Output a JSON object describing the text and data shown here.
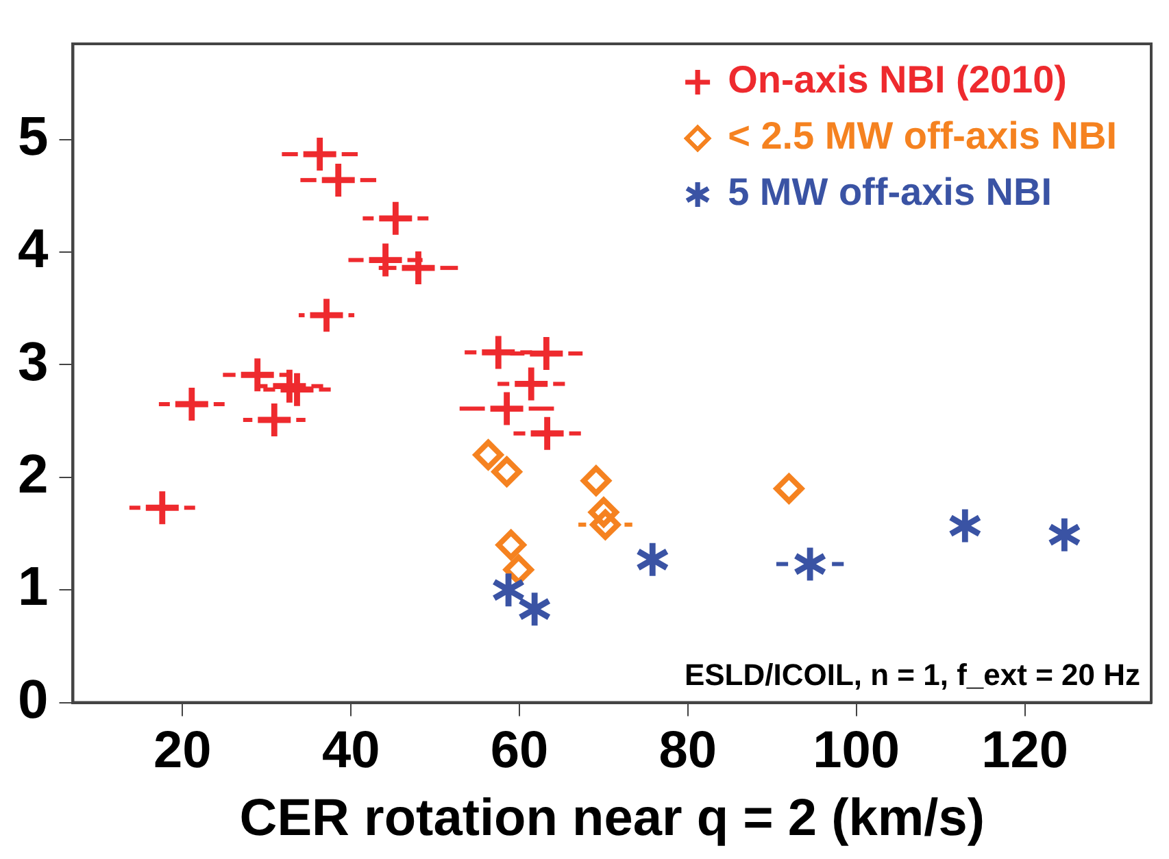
{
  "chart_data": {
    "type": "scatter",
    "xlabel": "CER rotation near q = 2 (km/s)",
    "xlim": [
      7,
      135
    ],
    "xticks": [
      20,
      40,
      60,
      80,
      100,
      120
    ],
    "ylim": [
      0,
      5.85
    ],
    "yticks": [
      0,
      1,
      2,
      3,
      4,
      5
    ],
    "grid": false,
    "legend": "top right",
    "annotations": [
      "ESLD/ICOIL, n = 1, f_ext = 20 Hz"
    ],
    "series": [
      {
        "name": "On-axis NBI (2010)",
        "color": "#ee2a2e",
        "marker": "cross",
        "x": [
          36.3,
          38.5,
          45.3,
          44.1,
          48.0,
          37.1,
          28.9,
          32.7,
          33.6,
          21.1,
          30.9,
          57.5,
          63.2,
          61.4,
          58.5,
          63.3,
          17.6
        ],
        "values": [
          4.87,
          4.64,
          4.3,
          3.93,
          3.86,
          3.44,
          2.91,
          2.81,
          2.78,
          2.65,
          2.51,
          3.11,
          3.1,
          2.83,
          2.61,
          2.39,
          1.73
        ],
        "xerrors": [
          4.5,
          4.5,
          3.9,
          4.4,
          4.7,
          3.3,
          4.1,
          4,
          4,
          3.9,
          3.7,
          4,
          4.3,
          4,
          5.6,
          4,
          3.9
        ]
      },
      {
        "name": "< 2.5 MW off-axis NBI",
        "color": "#f58220",
        "marker": "diamond",
        "x": [
          56.3,
          58.5,
          69.1,
          70.0,
          70.2,
          92.0,
          59.0,
          59.9
        ],
        "values": [
          2.2,
          2.05,
          1.97,
          1.69,
          1.58,
          1.9,
          1.4,
          1.18
        ],
        "xerrors": [
          null,
          null,
          null,
          null,
          3.2,
          null,
          null,
          null
        ]
      },
      {
        "name": "5 MW off-axis NBI",
        "color": "#3a53a4",
        "marker": "star",
        "x": [
          58.7,
          61.8,
          75.8,
          94.5,
          112.9,
          124.7
        ],
        "values": [
          1.0,
          0.83,
          1.27,
          1.23,
          1.57,
          1.49
        ],
        "xerrors": [
          null,
          null,
          null,
          4,
          null,
          null
        ]
      }
    ]
  }
}
